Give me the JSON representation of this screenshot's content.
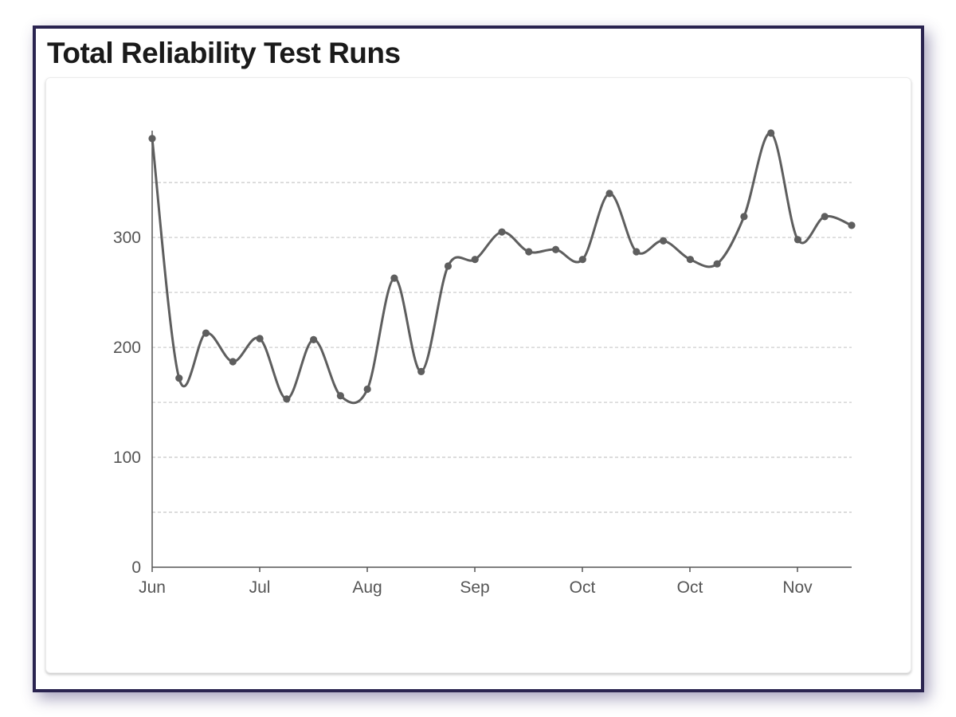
{
  "chart_data": {
    "type": "line",
    "title": "Total Reliability Test Runs",
    "xlabel": "",
    "ylabel": "",
    "x_tick_labels": [
      "Jun",
      "Jul",
      "Aug",
      "Sep",
      "Oct",
      "Oct",
      "Nov"
    ],
    "y_ticks": [
      0,
      100,
      200,
      300
    ],
    "ylim": [
      0,
      395
    ],
    "grid": true,
    "grid_step": 50,
    "smooth": true,
    "series": [
      {
        "color": "#5e5e5e",
        "values": [
          390,
          172,
          213,
          187,
          208,
          153,
          207,
          156,
          162,
          263,
          178,
          274,
          280,
          305,
          287,
          289,
          280,
          340,
          287,
          297,
          280,
          276,
          319,
          395,
          298,
          319,
          311
        ]
      }
    ]
  }
}
